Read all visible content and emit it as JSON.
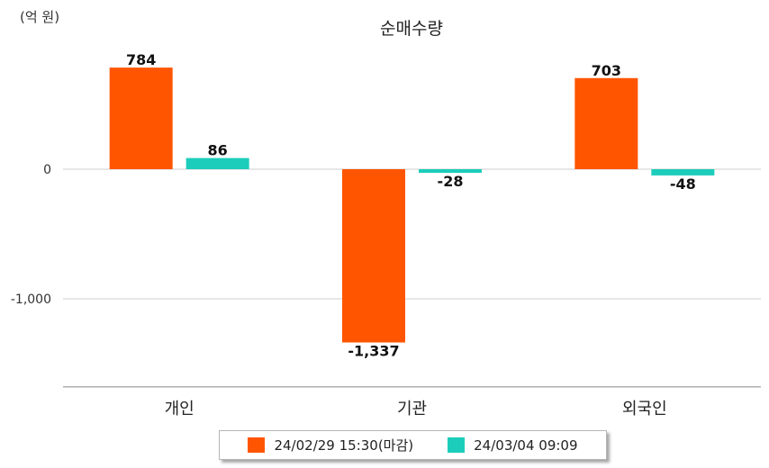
{
  "chart_data": {
    "type": "bar",
    "title": "순매수량",
    "unit_label": "(억 원)",
    "categories": [
      "개인",
      "기관",
      "외국인"
    ],
    "series": [
      {
        "name": "24/02/29 15:30(마감)",
        "color": "#ff5500",
        "values": [
          784,
          -1337,
          703
        ],
        "labels": [
          "784",
          "-1,337",
          "703"
        ]
      },
      {
        "name": "24/03/04 09:09",
        "color": "#1ccdbb",
        "values": [
          86,
          -28,
          -48
        ],
        "labels": [
          "86",
          "-28",
          "-48"
        ]
      }
    ],
    "y_ticks": [
      0,
      -1000
    ],
    "y_tick_labels": [
      "0",
      "-1,000"
    ],
    "ylim": [
      -1680,
      950
    ],
    "grid": true,
    "legend_position": "bottom"
  }
}
